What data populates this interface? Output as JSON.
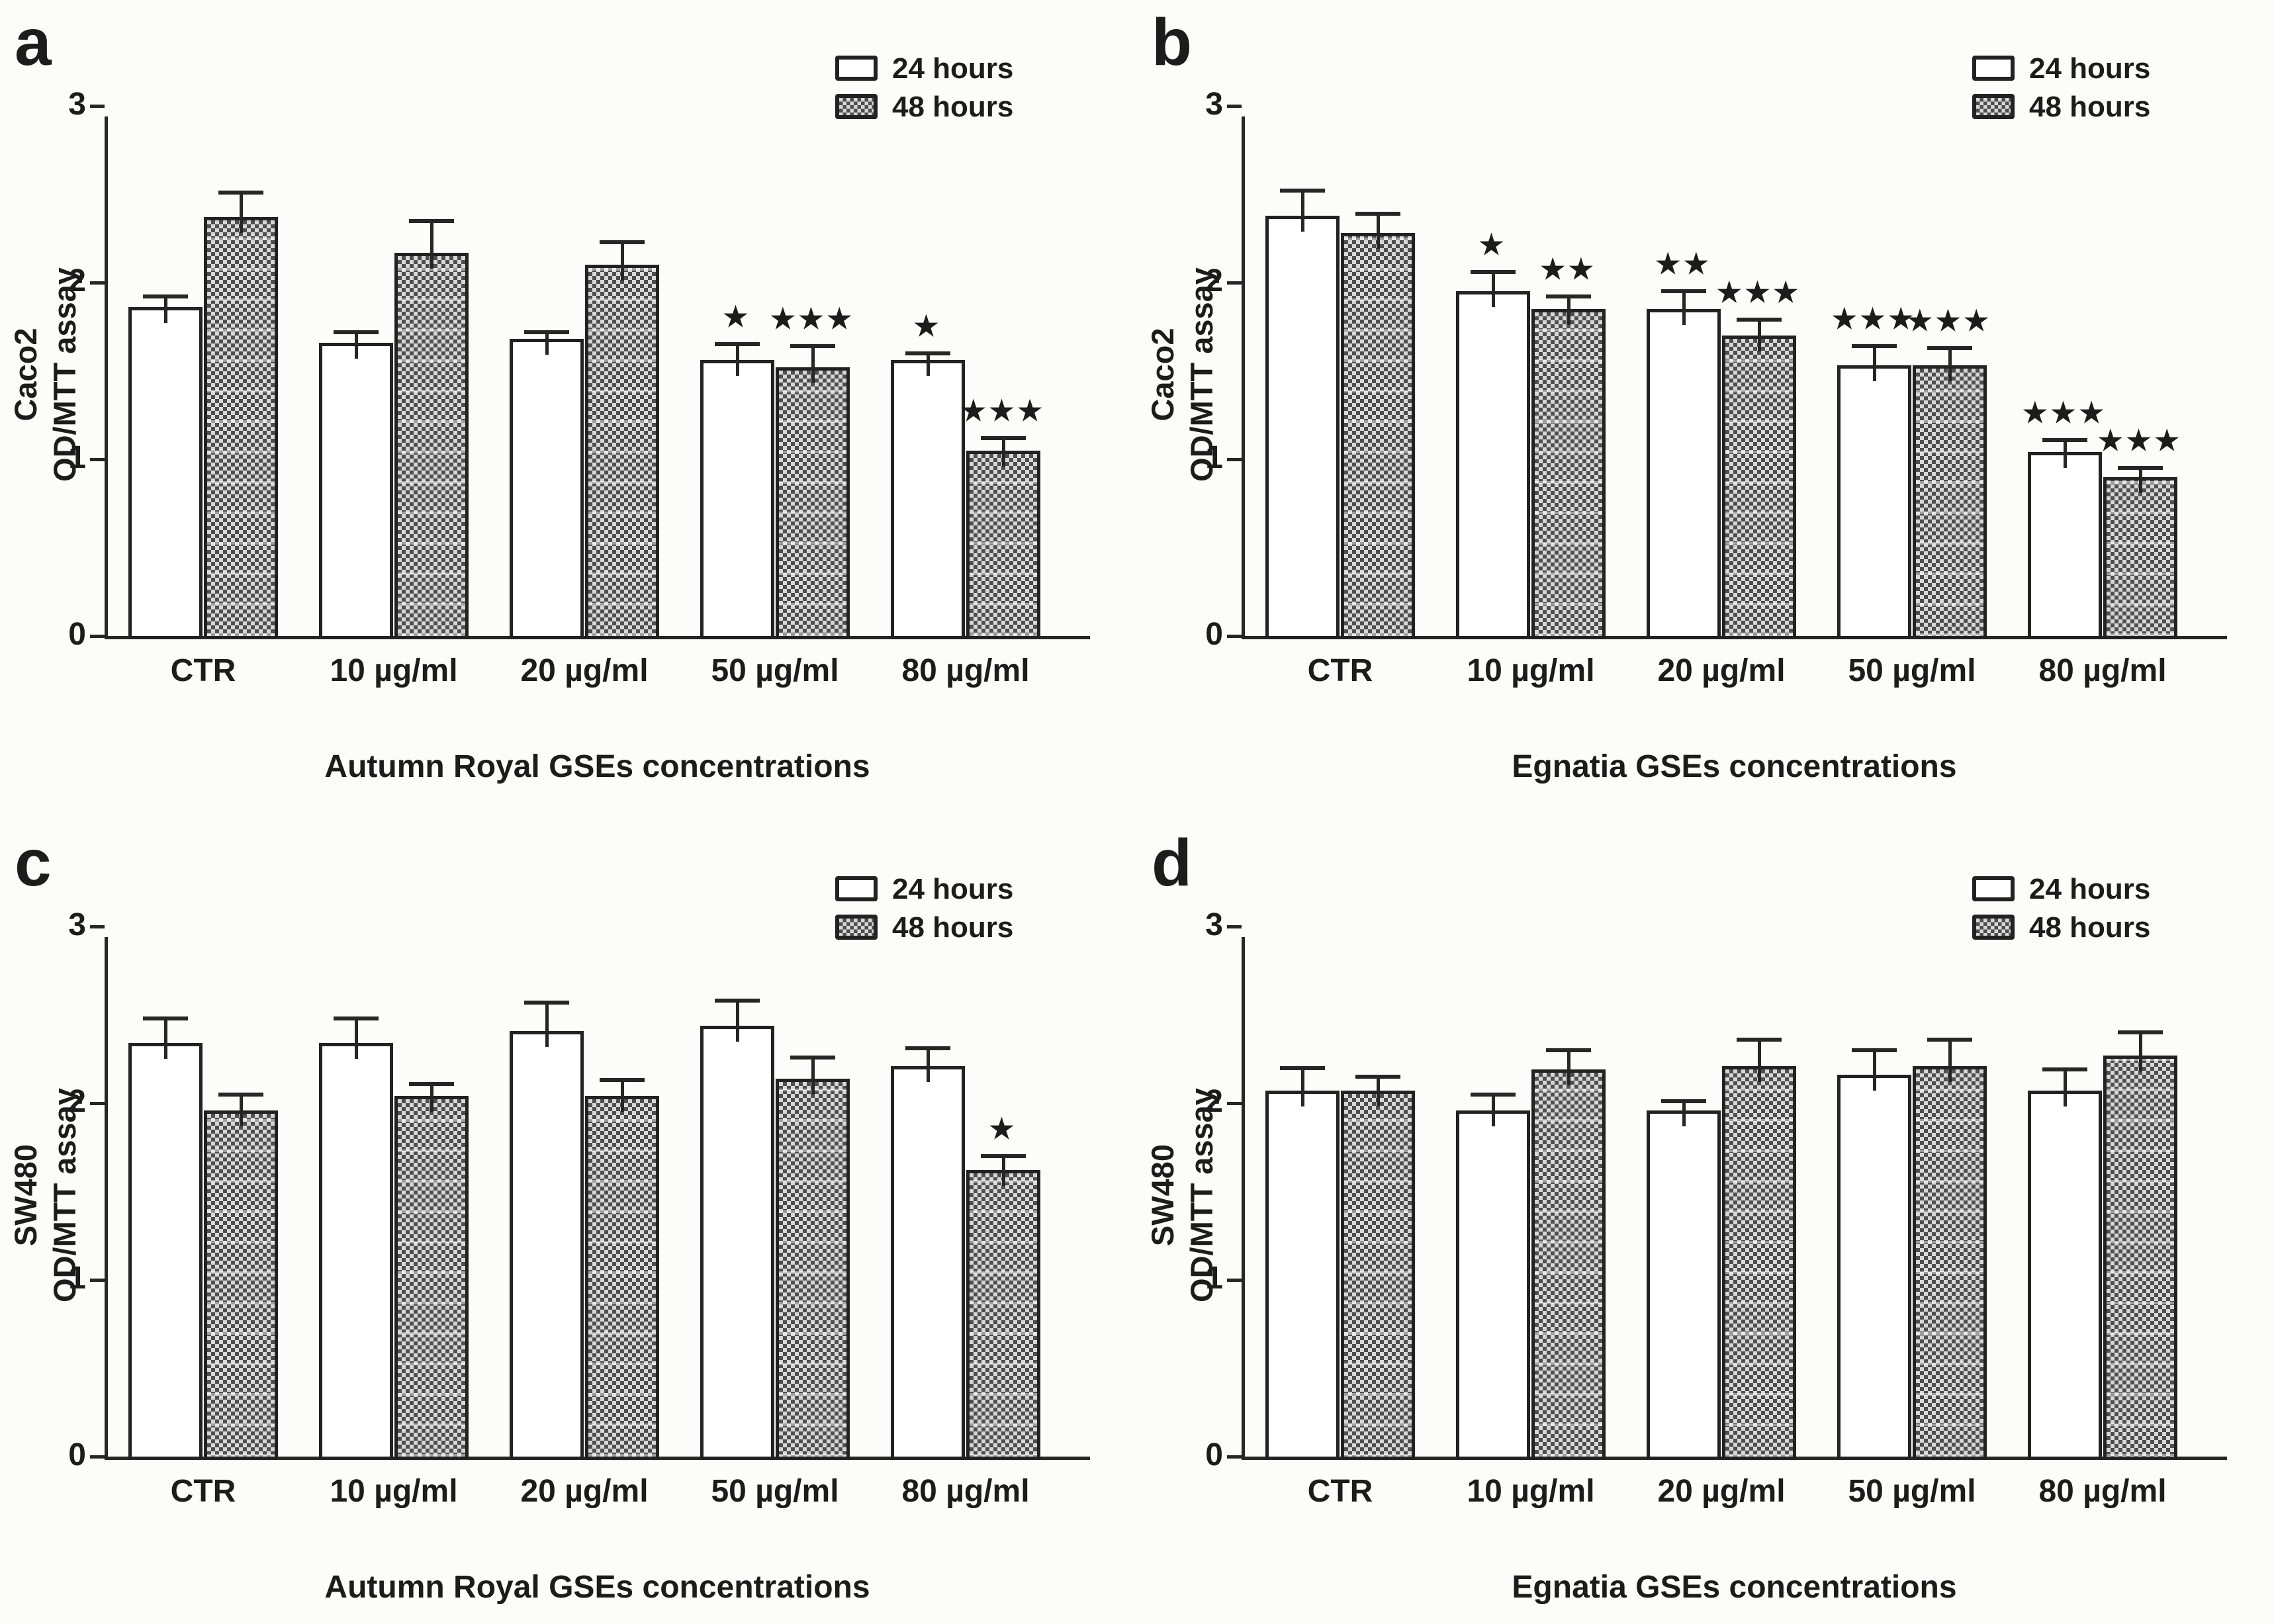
{
  "figure": {
    "background": "#fcfcfa",
    "ink": "#1c1c1c",
    "bar_fill_24h": "#ffffff",
    "bar_fill_48h_pattern_dark": "#4e4e4e",
    "bar_fill_48h_pattern_light": "#d7d7d7"
  },
  "legend": {
    "items": [
      {
        "label": "24 hours",
        "pattern": "white"
      },
      {
        "label": "48 hours",
        "pattern": "checker"
      }
    ]
  },
  "chart_data": [
    {
      "type": "bar",
      "panel_label": "a",
      "cell_line": "Caco2",
      "ylabel_lines": [
        "Caco2",
        "OD/MTT assay"
      ],
      "xlabel": "Autumn Royal GSEs concentrations",
      "categories": [
        "CTR",
        "10 µg/ml",
        "20 µg/ml",
        "50 µg/ml",
        "80 µg/ml"
      ],
      "ylim": [
        0,
        3
      ],
      "yticks": [
        0,
        1,
        2,
        3
      ],
      "legend_position": "top-right",
      "series": [
        {
          "name": "24 hours",
          "pattern": "white",
          "values": [
            1.86,
            1.66,
            1.68,
            1.56,
            1.56
          ],
          "errors": [
            0.06,
            0.06,
            0.04,
            0.09,
            0.04
          ],
          "sig": [
            "",
            "",
            "",
            "*",
            "*"
          ]
        },
        {
          "name": "48 hours",
          "pattern": "checker",
          "values": [
            2.37,
            2.17,
            2.1,
            1.52,
            1.05
          ],
          "errors": [
            0.14,
            0.18,
            0.13,
            0.12,
            0.07
          ],
          "sig": [
            "",
            "",
            "",
            "***",
            "***"
          ]
        }
      ]
    },
    {
      "type": "bar",
      "panel_label": "b",
      "cell_line": "Caco2",
      "ylabel_lines": [
        "Caco2",
        "OD/MTT assay"
      ],
      "xlabel": "Egnatia GSEs concentrations",
      "categories": [
        "CTR",
        "10 µg/ml",
        "20 µg/ml",
        "50 µg/ml",
        "80 µg/ml"
      ],
      "ylim": [
        0,
        3
      ],
      "yticks": [
        0,
        1,
        2,
        3
      ],
      "legend_position": "top-right",
      "series": [
        {
          "name": "24 hours",
          "pattern": "white",
          "values": [
            2.38,
            1.95,
            1.85,
            1.53,
            1.04
          ],
          "errors": [
            0.14,
            0.11,
            0.1,
            0.11,
            0.07
          ],
          "sig": [
            "",
            "*",
            "**",
            "***",
            "***"
          ]
        },
        {
          "name": "48 hours",
          "pattern": "checker",
          "values": [
            2.28,
            1.85,
            1.7,
            1.53,
            0.9
          ],
          "errors": [
            0.11,
            0.07,
            0.09,
            0.1,
            0.05
          ],
          "sig": [
            "",
            "**",
            "***",
            "***",
            "***"
          ]
        }
      ]
    },
    {
      "type": "bar",
      "panel_label": "c",
      "cell_line": "SW480",
      "ylabel_lines": [
        "SW480",
        "OD/MTT assay"
      ],
      "xlabel": "Autumn Royal GSEs concentrations",
      "categories": [
        "CTR",
        "10 µg/ml",
        "20 µg/ml",
        "50 µg/ml",
        "80 µg/ml"
      ],
      "ylim": [
        0,
        3
      ],
      "yticks": [
        0,
        1,
        2,
        3
      ],
      "legend_position": "top-right",
      "series": [
        {
          "name": "24 hours",
          "pattern": "white",
          "values": [
            2.34,
            2.34,
            2.41,
            2.44,
            2.21
          ],
          "errors": [
            0.14,
            0.14,
            0.16,
            0.14,
            0.1
          ],
          "sig": [
            "",
            "",
            "",
            "",
            ""
          ]
        },
        {
          "name": "48 hours",
          "pattern": "checker",
          "values": [
            1.96,
            2.04,
            2.04,
            2.14,
            1.62
          ],
          "errors": [
            0.09,
            0.07,
            0.09,
            0.12,
            0.08
          ],
          "sig": [
            "",
            "",
            "",
            "",
            "*"
          ]
        }
      ]
    },
    {
      "type": "bar",
      "panel_label": "d",
      "cell_line": "SW480",
      "ylabel_lines": [
        "SW480",
        "OD/MTT assay"
      ],
      "xlabel": "Egnatia GSEs concentrations",
      "categories": [
        "CTR",
        "10 µg/ml",
        "20 µg/ml",
        "50 µg/ml",
        "80 µg/ml"
      ],
      "ylim": [
        0,
        3
      ],
      "yticks": [
        0,
        1,
        2,
        3
      ],
      "legend_position": "top-right",
      "series": [
        {
          "name": "24 hours",
          "pattern": "white",
          "values": [
            2.07,
            1.96,
            1.96,
            2.16,
            2.07
          ],
          "errors": [
            0.13,
            0.09,
            0.05,
            0.14,
            0.12
          ],
          "sig": [
            "",
            "",
            "",
            "",
            ""
          ]
        },
        {
          "name": "48 hours",
          "pattern": "checker",
          "values": [
            2.07,
            2.19,
            2.21,
            2.21,
            2.27
          ],
          "errors": [
            0.08,
            0.11,
            0.15,
            0.15,
            0.13
          ],
          "sig": [
            "",
            "",
            "",
            "",
            ""
          ]
        }
      ]
    }
  ]
}
